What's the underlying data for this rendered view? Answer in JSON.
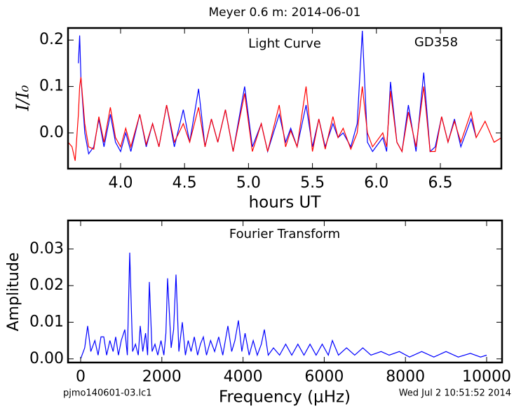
{
  "chart_data": [
    {
      "type": "line",
      "title": "Meyer 0.6 m:  2014-06-01",
      "annotations": [
        "Light Curve",
        "GD358"
      ],
      "xlabel": "hours UT",
      "ylabel": "I/I₀",
      "xlim": [
        3.589,
        6.977
      ],
      "ylim": [
        -0.077,
        0.226
      ],
      "xticks": [
        {
          "value": 4,
          "label": "4.0"
        },
        4.5,
        {
          "value": 5,
          "label": "5.0"
        },
        5.5,
        {
          "value": 6,
          "label": "6.0"
        },
        6.5
      ],
      "yticks": [
        {
          "value": 0,
          "label": "0.0"
        },
        0.1,
        0.2
      ],
      "x": [
        3.59,
        3.62,
        3.645,
        3.67,
        3.68,
        3.69,
        3.72,
        3.75,
        3.79,
        3.83,
        3.87,
        3.92,
        3.96,
        4.0,
        4.04,
        4.08,
        4.15,
        4.2,
        4.25,
        4.3,
        4.36,
        4.42,
        4.49,
        4.54,
        4.61,
        4.66,
        4.71,
        4.76,
        4.82,
        4.88,
        4.97,
        5.03,
        5.1,
        5.15,
        5.24,
        5.29,
        5.33,
        5.38,
        5.45,
        5.5,
        5.55,
        5.6,
        5.66,
        5.7,
        5.74,
        5.8,
        5.85,
        5.89,
        5.93,
        5.97,
        6.05,
        6.08,
        6.11,
        6.16,
        6.2,
        6.25,
        6.31,
        6.37,
        6.42,
        6.46,
        6.51,
        6.56,
        6.61,
        6.66,
        6.74,
        6.78,
        6.85,
        6.92,
        6.98
      ],
      "series": [
        {
          "color": "#0000ff",
          "values": [
            null,
            null,
            null,
            0.15,
            0.21,
            0.12,
            0.0,
            -0.045,
            -0.03,
            0.03,
            -0.03,
            0.04,
            -0.02,
            -0.04,
            0.0,
            -0.04,
            0.04,
            -0.03,
            0.02,
            -0.03,
            0.06,
            -0.03,
            0.05,
            -0.02,
            0.095,
            -0.03,
            0.03,
            -0.02,
            0.05,
            -0.04,
            0.1,
            -0.03,
            0.02,
            -0.04,
            0.04,
            -0.02,
            0.01,
            -0.03,
            0.06,
            -0.03,
            0.03,
            -0.03,
            0.02,
            -0.01,
            0.0,
            -0.03,
            0.02,
            0.22,
            -0.02,
            -0.04,
            -0.01,
            -0.04,
            0.11,
            -0.02,
            -0.04,
            0.06,
            -0.04,
            0.13,
            -0.04,
            -0.03,
            0.035,
            -0.02,
            0.03,
            -0.03,
            0.03,
            -0.01,
            null,
            null,
            null
          ]
        },
        {
          "color": "#ff0000",
          "values": [
            -0.02,
            -0.03,
            -0.06,
            0.04,
            0.1,
            0.12,
            0.02,
            -0.03,
            -0.035,
            0.035,
            -0.02,
            0.055,
            -0.01,
            -0.03,
            0.01,
            -0.03,
            0.04,
            -0.025,
            0.02,
            -0.03,
            0.06,
            -0.02,
            0.02,
            -0.02,
            0.055,
            -0.03,
            0.03,
            -0.02,
            0.05,
            -0.04,
            0.085,
            -0.04,
            0.02,
            -0.04,
            0.06,
            -0.03,
            0.005,
            -0.03,
            0.1,
            -0.04,
            0.03,
            -0.035,
            0.035,
            -0.01,
            0.01,
            -0.035,
            0.0,
            0.1,
            0.0,
            -0.03,
            0.0,
            -0.03,
            0.09,
            -0.02,
            -0.04,
            0.045,
            -0.03,
            0.1,
            -0.04,
            -0.04,
            0.035,
            -0.02,
            0.025,
            -0.02,
            0.045,
            -0.01,
            0.025,
            -0.02,
            -0.01
          ]
        }
      ]
    },
    {
      "type": "line",
      "annotations": [
        "Fourier Transform"
      ],
      "xlabel": "Frequency (μHz)",
      "ylabel": "Amplitude",
      "footnotes": [
        "pjmo140601-03.lc1",
        "Wed Jul  2 10:51:52 2014"
      ],
      "xlim": [
        -311,
        10380
      ],
      "ylim": [
        -0.001,
        0.0378
      ],
      "xticks": [
        0,
        2000,
        4000,
        6000,
        8000,
        10000
      ],
      "yticks": [
        {
          "value": 0,
          "label": "0.00"
        },
        0.01,
        0.02,
        0.03
      ],
      "x": [
        0,
        100,
        173,
        250,
        350,
        430,
        500,
        570,
        640,
        720,
        800,
        863,
        930,
        1000,
        1088,
        1150,
        1209,
        1280,
        1350,
        1420,
        1468,
        1530,
        1600,
        1650,
        1692,
        1760,
        1830,
        1900,
        1980,
        2050,
        2100,
        2141,
        2230,
        2290,
        2349,
        2420,
        2504,
        2580,
        2650,
        2720,
        2800,
        2880,
        2950,
        3022,
        3100,
        3200,
        3300,
        3400,
        3500,
        3627,
        3720,
        3800,
        3886,
        3970,
        4050,
        4150,
        4250,
        4350,
        4450,
        4525,
        4620,
        4750,
        4900,
        5050,
        5200,
        5350,
        5500,
        5650,
        5800,
        5950,
        6100,
        6200,
        6350,
        6550,
        6750,
        6950,
        7150,
        7400,
        7600,
        7850,
        8100,
        8400,
        8700,
        9000,
        9300,
        9600,
        9850,
        10000
      ],
      "series": [
        {
          "color": "#0000ff",
          "values": [
            0.0,
            0.003,
            0.009,
            0.002,
            0.005,
            0.001,
            0.006,
            0.006,
            0.001,
            0.005,
            0.002,
            0.006,
            0.001,
            0.005,
            0.008,
            0.001,
            0.029,
            0.002,
            0.004,
            0.001,
            0.009,
            0.002,
            0.007,
            0.001,
            0.021,
            0.002,
            0.004,
            0.001,
            0.005,
            0.001,
            0.007,
            0.022,
            0.003,
            0.008,
            0.023,
            0.002,
            0.01,
            0.001,
            0.005,
            0.002,
            0.006,
            0.001,
            0.004,
            0.006,
            0.001,
            0.005,
            0.002,
            0.006,
            0.001,
            0.009,
            0.002,
            0.005,
            0.0105,
            0.002,
            0.007,
            0.001,
            0.005,
            0.001,
            0.004,
            0.008,
            0.001,
            0.003,
            0.001,
            0.004,
            0.001,
            0.004,
            0.001,
            0.004,
            0.001,
            0.004,
            0.001,
            0.005,
            0.001,
            0.003,
            0.001,
            0.003,
            0.001,
            0.002,
            0.001,
            0.002,
            0.0005,
            0.002,
            0.0005,
            0.002,
            0.0005,
            0.0015,
            0.0005,
            0.001
          ]
        }
      ]
    }
  ]
}
